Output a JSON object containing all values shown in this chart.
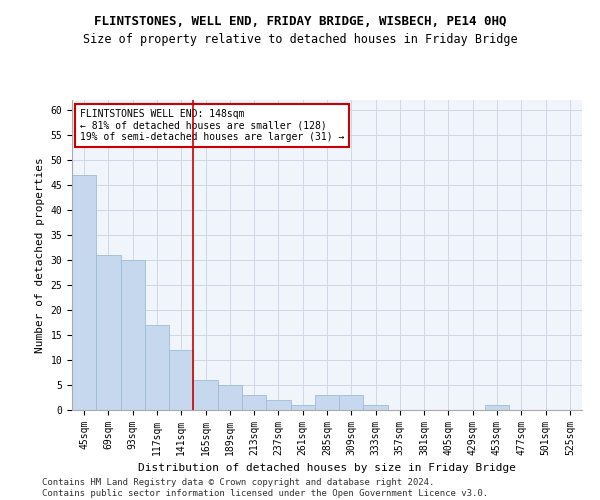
{
  "title": "FLINTSTONES, WELL END, FRIDAY BRIDGE, WISBECH, PE14 0HQ",
  "subtitle": "Size of property relative to detached houses in Friday Bridge",
  "xlabel": "Distribution of detached houses by size in Friday Bridge",
  "ylabel": "Number of detached properties",
  "categories": [
    "45sqm",
    "69sqm",
    "93sqm",
    "117sqm",
    "141sqm",
    "165sqm",
    "189sqm",
    "213sqm",
    "237sqm",
    "261sqm",
    "285sqm",
    "309sqm",
    "333sqm",
    "357sqm",
    "381sqm",
    "405sqm",
    "429sqm",
    "453sqm",
    "477sqm",
    "501sqm",
    "525sqm"
  ],
  "values": [
    47,
    31,
    30,
    17,
    12,
    6,
    5,
    3,
    2,
    1,
    3,
    3,
    1,
    0,
    0,
    0,
    0,
    1,
    0,
    0,
    0
  ],
  "bar_color": "#c5d8ed",
  "bar_edge_color": "#a0bcd8",
  "vline_x": 4.5,
  "vline_color": "#cc0000",
  "annotation_text": "FLINTSTONES WELL END: 148sqm\n← 81% of detached houses are smaller (128)\n19% of semi-detached houses are larger (31) →",
  "annotation_box_color": "#ffffff",
  "annotation_box_edge": "#cc0000",
  "ylim": [
    0,
    62
  ],
  "yticks": [
    0,
    5,
    10,
    15,
    20,
    25,
    30,
    35,
    40,
    45,
    50,
    55,
    60
  ],
  "footer": "Contains HM Land Registry data © Crown copyright and database right 2024.\nContains public sector information licensed under the Open Government Licence v3.0.",
  "bg_color": "#f0f4fb",
  "grid_color": "#d0d8e8",
  "title_fontsize": 9,
  "subtitle_fontsize": 8.5,
  "axis_label_fontsize": 8,
  "tick_fontsize": 7,
  "annotation_fontsize": 7,
  "footer_fontsize": 6.5
}
